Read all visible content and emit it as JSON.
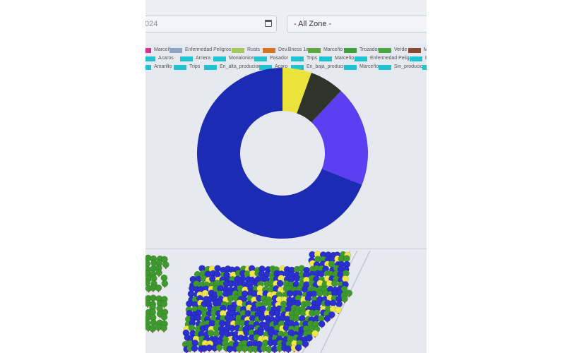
{
  "filters": {
    "date_value": "024",
    "zone_value": "- All Zone -"
  },
  "legend_rows": [
    [
      {
        "label": "Marceño",
        "color": "#d82f8c"
      },
      {
        "label": "Enfermedad Peligros",
        "color": "#8fa4c4"
      },
      {
        "label": "Rusts",
        "color": "#a7c85a"
      },
      {
        "label": "Dev.Bness 1a",
        "color": "#d4761f"
      },
      {
        "label": "Marceño",
        "color": "#5ea83c"
      },
      {
        "label": "Trozador",
        "color": "#3fa03a"
      },
      {
        "label": "Verde",
        "color": "#48a83e"
      },
      {
        "label": "Ma",
        "color": "#8a4a2f"
      }
    ],
    [
      {
        "label": "Acaros",
        "color": "#1fc3cf"
      },
      {
        "label": "Arriera",
        "color": "#1fc3cf"
      },
      {
        "label": "Monalonion",
        "color": "#1fc3cf"
      },
      {
        "label": "Pasador",
        "color": "#1fc3cf"
      },
      {
        "label": "Trips",
        "color": "#1fc3cf"
      },
      {
        "label": "Marceño",
        "color": "#1fc3cf"
      },
      {
        "label": "Enfermedad Peligros",
        "color": "#1fc3cf"
      },
      {
        "label": "P",
        "color": "#1fc3cf"
      }
    ],
    [
      {
        "label": "Amarillo",
        "color": "#1fc3cf"
      },
      {
        "label": "Trips",
        "color": "#1fc3cf"
      },
      {
        "label": "En_alta_producion",
        "color": "#1fc3cf"
      },
      {
        "label": "Acaro",
        "color": "#1fc3cf"
      },
      {
        "label": "En_baja_producion",
        "color": "#1fc3cf"
      },
      {
        "label": "Marceño",
        "color": "#1fc3cf"
      },
      {
        "label": "Sin_producion",
        "color": "#1fc3cf"
      },
      {
        "label": "",
        "color": "#1fc3cf"
      }
    ]
  ],
  "chart_data": {
    "type": "pie",
    "donut": true,
    "slices": [
      {
        "value": 5.5,
        "color": "#ebe23a"
      },
      {
        "value": 6.5,
        "color": "#2f3329"
      },
      {
        "value": 19,
        "color": "#5c3ff0"
      },
      {
        "value": 69,
        "color": "#1c2bb4"
      }
    ]
  },
  "map_colors": {
    "green": "#3f9a2e",
    "blue": "#2a2fd0",
    "yellow": "#f0e64a",
    "trunk": "#c0412a"
  }
}
